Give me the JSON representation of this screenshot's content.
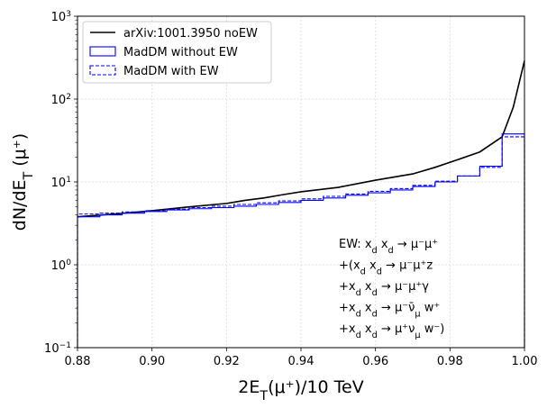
{
  "chart_data": {
    "type": "line",
    "xlabel": "2E_T(μ⁺)/10 TeV",
    "ylabel": "dN/dE_T (μ⁺)",
    "xlim": [
      0.88,
      1.0
    ],
    "ylim": [
      0.1,
      1000
    ],
    "yscale": "log",
    "grid": true,
    "grid_style": "dotted",
    "legend_position": "top-left",
    "x_ticks": [
      0.88,
      0.9,
      0.92,
      0.94,
      0.96,
      0.98,
      1.0
    ],
    "x_tick_labels": [
      "0.88",
      "0.90",
      "0.92",
      "0.94",
      "0.96",
      "0.98",
      "1.00"
    ],
    "y_ticks": [
      0.1,
      1,
      10,
      100,
      1000
    ],
    "y_tick_labels": [
      {
        "base": "10",
        "exp": "−1"
      },
      {
        "base": "10",
        "exp": "0"
      },
      {
        "base": "10",
        "exp": "1"
      },
      {
        "base": "10",
        "exp": "2"
      },
      {
        "base": "10",
        "exp": "3"
      }
    ],
    "series": [
      {
        "name": "arXiv:1001.3950 noEW",
        "style": "line",
        "color": "#000000",
        "x": [
          0.88,
          0.89,
          0.9,
          0.91,
          0.92,
          0.925,
          0.93,
          0.935,
          0.94,
          0.95,
          0.96,
          0.97,
          0.976,
          0.982,
          0.988,
          0.994,
          0.997,
          1.0
        ],
        "y": [
          3.8,
          4.1,
          4.5,
          5.0,
          5.5,
          6.0,
          6.4,
          7.0,
          7.6,
          8.6,
          10.5,
          12.5,
          15.0,
          18.5,
          23.0,
          35.0,
          80.0,
          290.0
        ]
      },
      {
        "name": "MadDM without EW",
        "style": "step",
        "color": "#0000ff",
        "dashed": false,
        "edges": [
          0.88,
          0.886,
          0.892,
          0.898,
          0.904,
          0.91,
          0.916,
          0.922,
          0.928,
          0.934,
          0.94,
          0.946,
          0.952,
          0.958,
          0.964,
          0.97,
          0.976,
          0.982,
          0.988,
          0.994,
          1.0
        ],
        "values": [
          3.8,
          4.0,
          4.2,
          4.4,
          4.6,
          4.75,
          4.9,
          5.1,
          5.35,
          5.65,
          6.0,
          6.4,
          6.9,
          7.4,
          8.0,
          8.8,
          10.0,
          11.8,
          15.5,
          38.0
        ]
      },
      {
        "name": "MadDM with EW",
        "style": "step",
        "color": "#0000ff",
        "dashed": true,
        "edges": [
          0.88,
          0.886,
          0.892,
          0.898,
          0.904,
          0.91,
          0.916,
          0.922,
          0.928,
          0.934,
          0.94,
          0.946,
          0.952,
          0.958,
          0.964,
          0.97,
          0.976,
          0.982,
          0.988,
          0.994,
          1.0
        ],
        "values": [
          4.1,
          4.2,
          4.35,
          4.5,
          4.7,
          4.9,
          5.1,
          5.35,
          5.6,
          5.9,
          6.25,
          6.7,
          7.15,
          7.7,
          8.3,
          9.1,
          10.2,
          11.8,
          15.0,
          35.0
        ]
      }
    ],
    "annotation": [
      "EW: x_d x_d → μ⁻μ⁺",
      "+(x_d x_d → μ⁻μ⁺z",
      "+x_d x_d → μ⁻μ⁺γ",
      "+x_d x_d → μ⁻ν̄_μ w⁺",
      "+x_d x_d → μ⁺ν_μ w⁻)"
    ]
  }
}
